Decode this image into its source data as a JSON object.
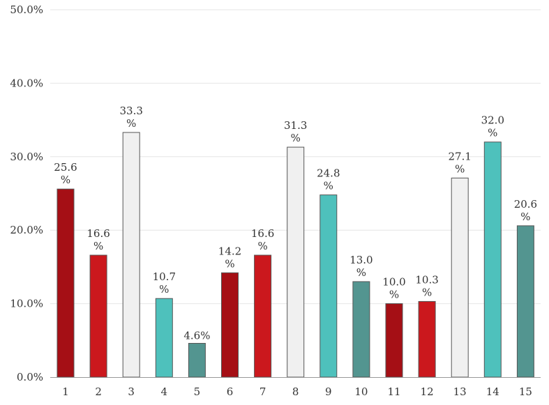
{
  "chart_data": {
    "type": "bar",
    "categories": [
      "1",
      "2",
      "3",
      "4",
      "5",
      "6",
      "7",
      "8",
      "9",
      "10",
      "11",
      "12",
      "13",
      "14",
      "15"
    ],
    "values": [
      25.6,
      16.6,
      33.3,
      10.7,
      4.6,
      14.2,
      16.6,
      31.3,
      24.8,
      13.0,
      10.0,
      10.3,
      27.1,
      32.0,
      20.6
    ],
    "data_labels": [
      "25.6%",
      "16.6%",
      "33.3%",
      "10.7%",
      "4.6%",
      "14.2%",
      "16.6%",
      "31.3%",
      "24.8%",
      "13.0%",
      "10.0%",
      "10.3%",
      "27.1%",
      "32.0%",
      "20.6%"
    ],
    "bar_colors": [
      "#a50f15",
      "#cb181d",
      "#f0f0f0",
      "#4ec1bc",
      "#539590",
      "#a50f15",
      "#cb181d",
      "#f0f0f0",
      "#4ec1bc",
      "#539590",
      "#a50f15",
      "#cb181d",
      "#f0f0f0",
      "#4ec1bc",
      "#539590"
    ],
    "y_ticks": [
      0,
      10,
      20,
      30,
      40,
      50
    ],
    "y_tick_labels": [
      "0.0%",
      "10.0%",
      "20.0%",
      "30.0%",
      "40.0%",
      "50.0%"
    ],
    "ylim": [
      0,
      50
    ],
    "unit": "%",
    "grid": true,
    "legend": "none",
    "title": "",
    "xlabel": "",
    "ylabel": ""
  }
}
